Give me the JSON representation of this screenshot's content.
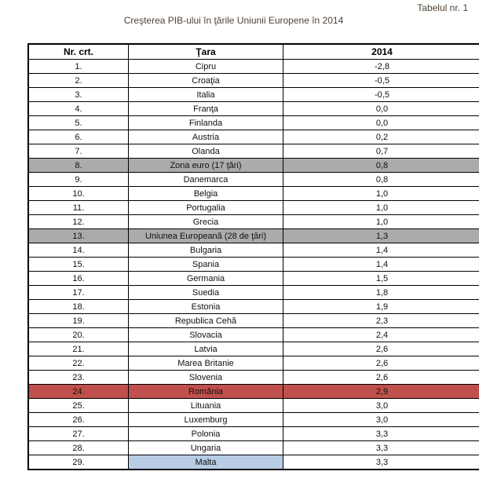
{
  "caption": "Tabelul nr. 1",
  "title": "Creşterea PIB-ului în ţările Uniunii Europene în 2014",
  "table": {
    "columns": [
      "Nr. crt.",
      "Ţara",
      "2014"
    ],
    "rows": [
      {
        "nr": "1.",
        "country": "Cipru",
        "value": "-2,8",
        "highlight": "none"
      },
      {
        "nr": "2.",
        "country": "Croaţia",
        "value": "-0,5",
        "highlight": "none"
      },
      {
        "nr": "3.",
        "country": "Italia",
        "value": "-0,5",
        "highlight": "none"
      },
      {
        "nr": "4.",
        "country": "Franţa",
        "value": "0,0",
        "highlight": "none"
      },
      {
        "nr": "5.",
        "country": "Finlanda",
        "value": "0,0",
        "highlight": "none"
      },
      {
        "nr": "6.",
        "country": "Austria",
        "value": "0,2",
        "highlight": "none"
      },
      {
        "nr": "7.",
        "country": "Olanda",
        "value": "0,7",
        "highlight": "none"
      },
      {
        "nr": "8.",
        "country": "Zona euro (17 ţări)",
        "value": "0,8",
        "highlight": "gray"
      },
      {
        "nr": "9.",
        "country": "Danemarca",
        "value": "0,8",
        "highlight": "none"
      },
      {
        "nr": "10.",
        "country": "Belgia",
        "value": "1,0",
        "highlight": "none"
      },
      {
        "nr": "11.",
        "country": "Portugalia",
        "value": "1,0",
        "highlight": "none"
      },
      {
        "nr": "12.",
        "country": "Grecia",
        "value": "1,0",
        "highlight": "none"
      },
      {
        "nr": "13.",
        "country": "Uniunea Europeană (28 de ţări)",
        "value": "1,3",
        "highlight": "gray"
      },
      {
        "nr": "14.",
        "country": "Bulgaria",
        "value": "1,4",
        "highlight": "none"
      },
      {
        "nr": "15.",
        "country": "Spania",
        "value": "1,4",
        "highlight": "none"
      },
      {
        "nr": "16.",
        "country": "Germania",
        "value": "1,5",
        "highlight": "none"
      },
      {
        "nr": "17.",
        "country": "Suedia",
        "value": "1,8",
        "highlight": "none"
      },
      {
        "nr": "18.",
        "country": "Estonia",
        "value": "1,9",
        "highlight": "none"
      },
      {
        "nr": "19.",
        "country": "Republica Cehă",
        "value": "2,3",
        "highlight": "none"
      },
      {
        "nr": "20.",
        "country": "Slovacia",
        "value": "2,4",
        "highlight": "none"
      },
      {
        "nr": "21.",
        "country": "Latvia",
        "value": "2,6",
        "highlight": "none"
      },
      {
        "nr": "22.",
        "country": "Marea Britanie",
        "value": "2,6",
        "highlight": "none"
      },
      {
        "nr": "23.",
        "country": "Slovenia",
        "value": "2,6",
        "highlight": "none"
      },
      {
        "nr": "24.",
        "country": "România",
        "value": "2,9",
        "highlight": "red"
      },
      {
        "nr": "25.",
        "country": "Lituania",
        "value": "3,0",
        "highlight": "none"
      },
      {
        "nr": "26.",
        "country": "Luxemburg",
        "value": "3,0",
        "highlight": "none"
      },
      {
        "nr": "27.",
        "country": "Polonia",
        "value": "3,3",
        "highlight": "none"
      },
      {
        "nr": "28.",
        "country": "Ungaria",
        "value": "3,3",
        "highlight": "none"
      },
      {
        "nr": "29.",
        "country": "Malta",
        "value": "3,3",
        "highlight": "blue-country-cell"
      }
    ]
  },
  "colors": {
    "highlight_gray": "#ABABAB",
    "highlight_red": "#C0504D",
    "highlight_blue": "#B8CCE4",
    "border": "#000000",
    "heading_text": "#514337"
  }
}
